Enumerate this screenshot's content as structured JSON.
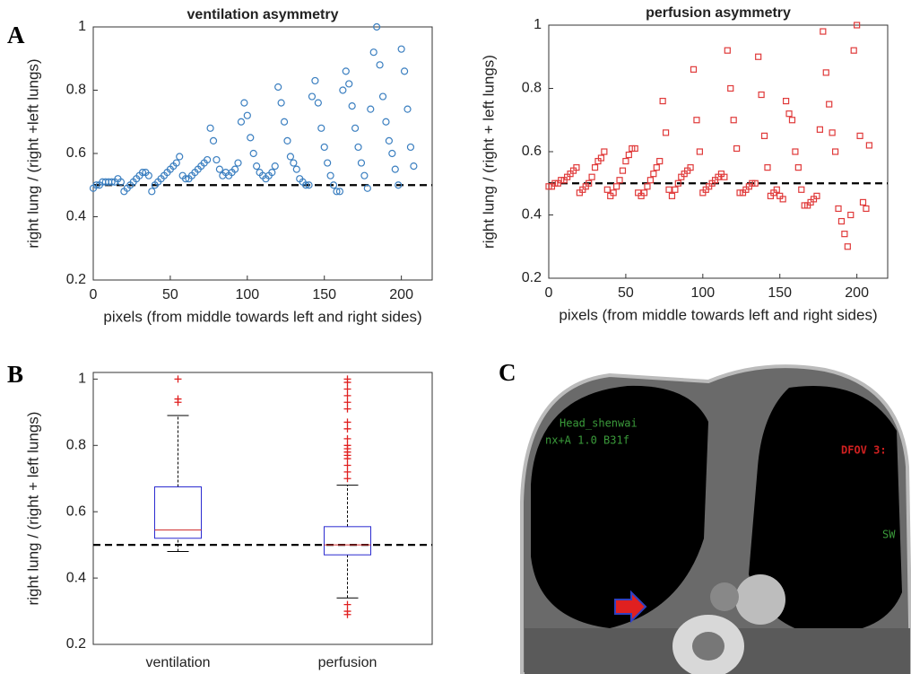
{
  "panel_labels": [
    "A",
    "B",
    "C"
  ],
  "image": {
    "overlay_texts": [
      "Head_shenwai",
      "nx+A 1.0 B31f",
      "DFOV 3:",
      "SW"
    ]
  },
  "chart_data": [
    {
      "type": "scatter",
      "title": "ventilation asymmetry",
      "x_label": "pixels (from middle towards left and right sides)",
      "y_label": "right lung / (right +left lungs)",
      "marker": "circle",
      "color": "#3b7fc0",
      "xlim": [
        0,
        220
      ],
      "xticks": [
        0,
        50,
        100,
        150,
        200
      ],
      "ylim": [
        0.2,
        1
      ],
      "yticks": [
        0.2,
        0.4,
        0.6,
        0.8,
        1
      ],
      "reference_line": 0.5,
      "x": [
        0,
        2,
        4,
        6,
        8,
        10,
        12,
        14,
        16,
        18,
        20,
        22,
        24,
        26,
        28,
        30,
        32,
        34,
        36,
        38,
        40,
        42,
        44,
        46,
        48,
        50,
        52,
        54,
        56,
        58,
        60,
        62,
        64,
        66,
        68,
        70,
        72,
        74,
        76,
        78,
        80,
        82,
        84,
        86,
        88,
        90,
        92,
        94,
        96,
        98,
        100,
        102,
        104,
        106,
        108,
        110,
        112,
        114,
        116,
        118,
        120,
        122,
        124,
        126,
        128,
        130,
        132,
        134,
        136,
        138,
        140,
        142,
        144,
        146,
        148,
        150,
        152,
        154,
        156,
        158,
        160,
        162,
        164,
        166,
        168,
        170,
        172,
        174,
        176,
        178,
        180,
        182,
        184,
        186,
        188,
        190,
        192,
        194,
        196,
        198,
        200,
        202,
        204,
        206,
        208
      ],
      "values": [
        0.49,
        0.5,
        0.5,
        0.51,
        0.51,
        0.51,
        0.51,
        0.51,
        0.52,
        0.51,
        0.48,
        0.49,
        0.5,
        0.51,
        0.52,
        0.53,
        0.54,
        0.54,
        0.53,
        0.48,
        0.5,
        0.51,
        0.52,
        0.53,
        0.54,
        0.55,
        0.56,
        0.57,
        0.59,
        0.53,
        0.52,
        0.52,
        0.53,
        0.54,
        0.55,
        0.56,
        0.57,
        0.58,
        0.68,
        0.64,
        0.58,
        0.55,
        0.53,
        0.54,
        0.53,
        0.54,
        0.55,
        0.57,
        0.7,
        0.76,
        0.72,
        0.65,
        0.6,
        0.56,
        0.54,
        0.53,
        0.52,
        0.53,
        0.54,
        0.56,
        0.81,
        0.76,
        0.7,
        0.64,
        0.59,
        0.57,
        0.55,
        0.52,
        0.51,
        0.5,
        0.5,
        0.78,
        0.83,
        0.76,
        0.68,
        0.62,
        0.57,
        0.53,
        0.5,
        0.48,
        0.48,
        0.8,
        0.86,
        0.82,
        0.75,
        0.68,
        0.62,
        0.57,
        0.53,
        0.49,
        0.74,
        0.92,
        1.0,
        0.88,
        0.78,
        0.7,
        0.64,
        0.6,
        0.55,
        0.5,
        0.93,
        0.86,
        0.74,
        0.62,
        0.56
      ]
    },
    {
      "type": "scatter",
      "title": "perfusion asymmetry",
      "x_label": "pixels (from middle towards left and right sides)",
      "y_label": "right lung / (right + left lungs)",
      "marker": "square",
      "color": "#e03a3a",
      "xlim": [
        0,
        220
      ],
      "xticks": [
        0,
        50,
        100,
        150,
        200
      ],
      "ylim": [
        0.2,
        1
      ],
      "yticks": [
        0.2,
        0.4,
        0.6,
        0.8,
        1
      ],
      "reference_line": 0.5,
      "x": [
        0,
        2,
        4,
        6,
        8,
        10,
        12,
        14,
        16,
        18,
        20,
        22,
        24,
        26,
        28,
        30,
        32,
        34,
        36,
        38,
        40,
        42,
        44,
        46,
        48,
        50,
        52,
        54,
        56,
        58,
        60,
        62,
        64,
        66,
        68,
        70,
        72,
        74,
        76,
        78,
        80,
        82,
        84,
        86,
        88,
        90,
        92,
        94,
        96,
        98,
        100,
        102,
        104,
        106,
        108,
        110,
        112,
        114,
        116,
        118,
        120,
        122,
        124,
        126,
        128,
        130,
        132,
        134,
        136,
        138,
        140,
        142,
        144,
        146,
        148,
        150,
        152,
        154,
        156,
        158,
        160,
        162,
        164,
        166,
        168,
        170,
        172,
        174,
        176,
        178,
        180,
        182,
        184,
        186,
        188,
        190,
        192,
        194,
        196,
        198,
        200,
        202,
        204,
        206,
        208
      ],
      "values": [
        0.49,
        0.49,
        0.5,
        0.5,
        0.51,
        0.51,
        0.52,
        0.53,
        0.54,
        0.55,
        0.47,
        0.48,
        0.49,
        0.5,
        0.52,
        0.55,
        0.57,
        0.58,
        0.6,
        0.48,
        0.46,
        0.47,
        0.49,
        0.51,
        0.54,
        0.57,
        0.59,
        0.61,
        0.61,
        0.47,
        0.46,
        0.47,
        0.49,
        0.51,
        0.53,
        0.55,
        0.57,
        0.76,
        0.66,
        0.48,
        0.46,
        0.48,
        0.5,
        0.52,
        0.53,
        0.54,
        0.55,
        0.86,
        0.7,
        0.6,
        0.47,
        0.48,
        0.49,
        0.5,
        0.51,
        0.52,
        0.53,
        0.52,
        0.92,
        0.8,
        0.7,
        0.61,
        0.47,
        0.47,
        0.48,
        0.49,
        0.5,
        0.5,
        0.9,
        0.78,
        0.65,
        0.55,
        0.46,
        0.47,
        0.48,
        0.46,
        0.45,
        0.76,
        0.72,
        0.7,
        0.6,
        0.55,
        0.48,
        0.43,
        0.43,
        0.44,
        0.45,
        0.46,
        0.67,
        0.98,
        0.85,
        0.75,
        0.66,
        0.6,
        0.42,
        0.38,
        0.34,
        0.3,
        0.4,
        0.92,
        1.0,
        0.65,
        0.44,
        0.42,
        0.62
      ]
    },
    {
      "type": "box",
      "y_label": "right lung / (right + left lungs)",
      "categories": [
        "ventilation",
        "perfusion"
      ],
      "box_color": "#2b2bd0",
      "median_color": "#d03030",
      "outlier_color": "#e02020",
      "ylim": [
        0.2,
        1.02
      ],
      "yticks": [
        0.2,
        0.4,
        0.6,
        0.8,
        1
      ],
      "reference_line": 0.5,
      "boxes": [
        {
          "whisker_low": 0.48,
          "q1": 0.52,
          "median": 0.545,
          "q3": 0.675,
          "whisker_high": 0.89,
          "outliers": [
            0.93,
            0.94,
            1.0
          ]
        },
        {
          "whisker_low": 0.34,
          "q1": 0.47,
          "median": 0.5,
          "q3": 0.555,
          "whisker_high": 0.68,
          "outliers": [
            0.7,
            0.72,
            0.74,
            0.76,
            0.77,
            0.78,
            0.79,
            0.8,
            0.82,
            0.85,
            0.87,
            0.91,
            0.93,
            0.95,
            0.97,
            0.99,
            1.0,
            0.32,
            0.3,
            0.29
          ]
        }
      ]
    }
  ]
}
